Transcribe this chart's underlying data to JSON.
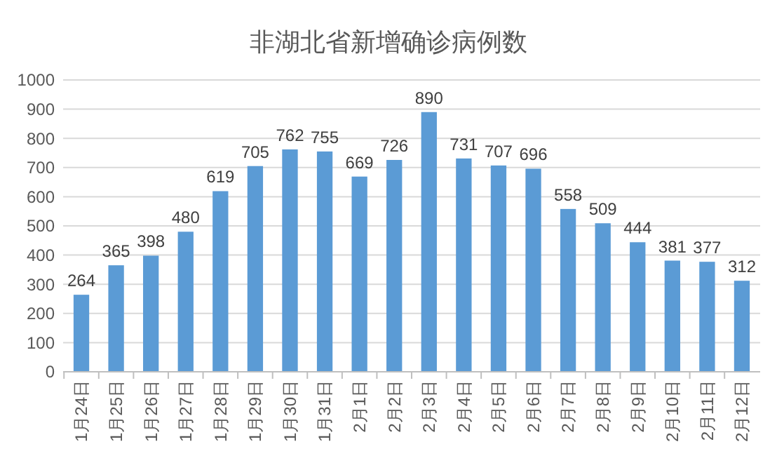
{
  "chart_data": {
    "type": "bar",
    "title": "非湖北省新增确诊病例数",
    "categories": [
      "1月24日",
      "1月25日",
      "1月26日",
      "1月27日",
      "1月28日",
      "1月29日",
      "1月30日",
      "1月31日",
      "2月1日",
      "2月2日",
      "2月3日",
      "2月4日",
      "2月5日",
      "2月6日",
      "2月7日",
      "2月8日",
      "2月9日",
      "2月10日",
      "2月11日",
      "2月12日"
    ],
    "values": [
      264,
      365,
      398,
      480,
      619,
      705,
      762,
      755,
      669,
      726,
      890,
      731,
      707,
      696,
      558,
      509,
      444,
      381,
      377,
      312
    ],
    "color": "#5b9bd5",
    "ylim": [
      0,
      1000
    ],
    "yticks": [
      0,
      100,
      200,
      300,
      400,
      500,
      600,
      700,
      800,
      900,
      1000
    ],
    "grid": "y",
    "data_labels": true
  }
}
